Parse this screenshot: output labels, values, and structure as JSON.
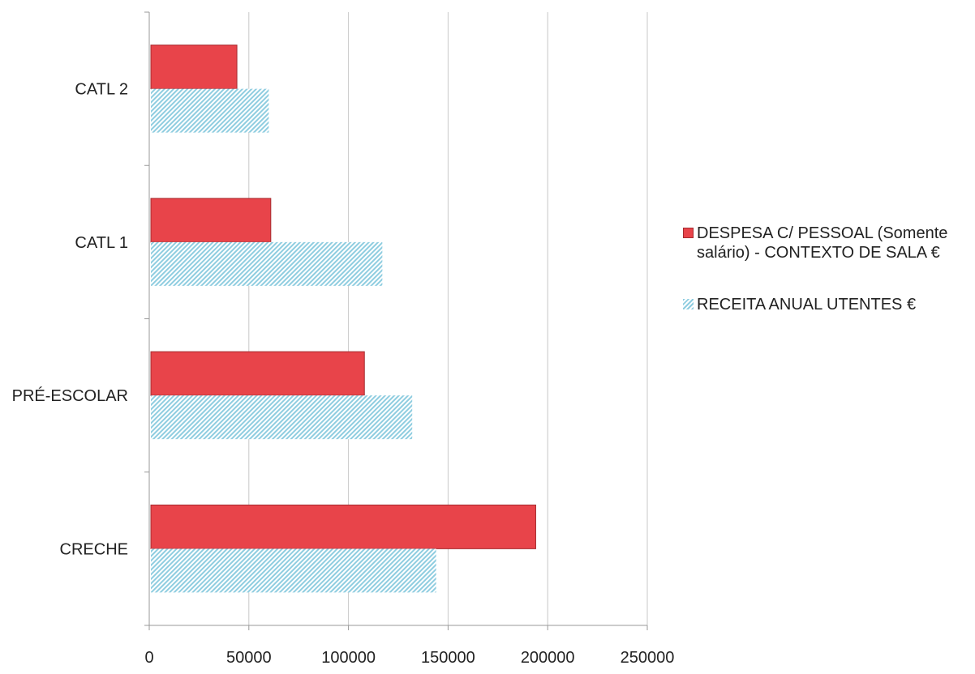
{
  "chart_data": {
    "type": "bar",
    "orientation": "horizontal",
    "categories": [
      "CATL 2",
      "CATL 1",
      "PRÉ-ESCOLAR",
      "CRECHE"
    ],
    "series": [
      {
        "name": "DESPESA C/ PESSOAL (Somente salário) - CONTEXTO DE SALA €",
        "name_lines": [
          "DESPESA C/ PESSOAL (Somente",
          "salário) - CONTEXTO DE SALA €"
        ],
        "values": [
          44000,
          61000,
          108000,
          194000
        ],
        "color": "#e8444a",
        "fill": "solid"
      },
      {
        "name": "RECEITA ANUAL UTENTES €",
        "name_lines": [
          "RECEITA ANUAL UTENTES €"
        ],
        "values": [
          60000,
          117000,
          132000,
          144000
        ],
        "color": "#8fcde0",
        "fill": "hatched"
      }
    ],
    "xlim": [
      0,
      250000
    ],
    "xticks": [
      "0",
      "50000",
      "100000",
      "150000",
      "200000",
      "250000"
    ],
    "grid": "vertical",
    "legend_position": "right",
    "title": "",
    "xlabel": "",
    "ylabel": ""
  }
}
